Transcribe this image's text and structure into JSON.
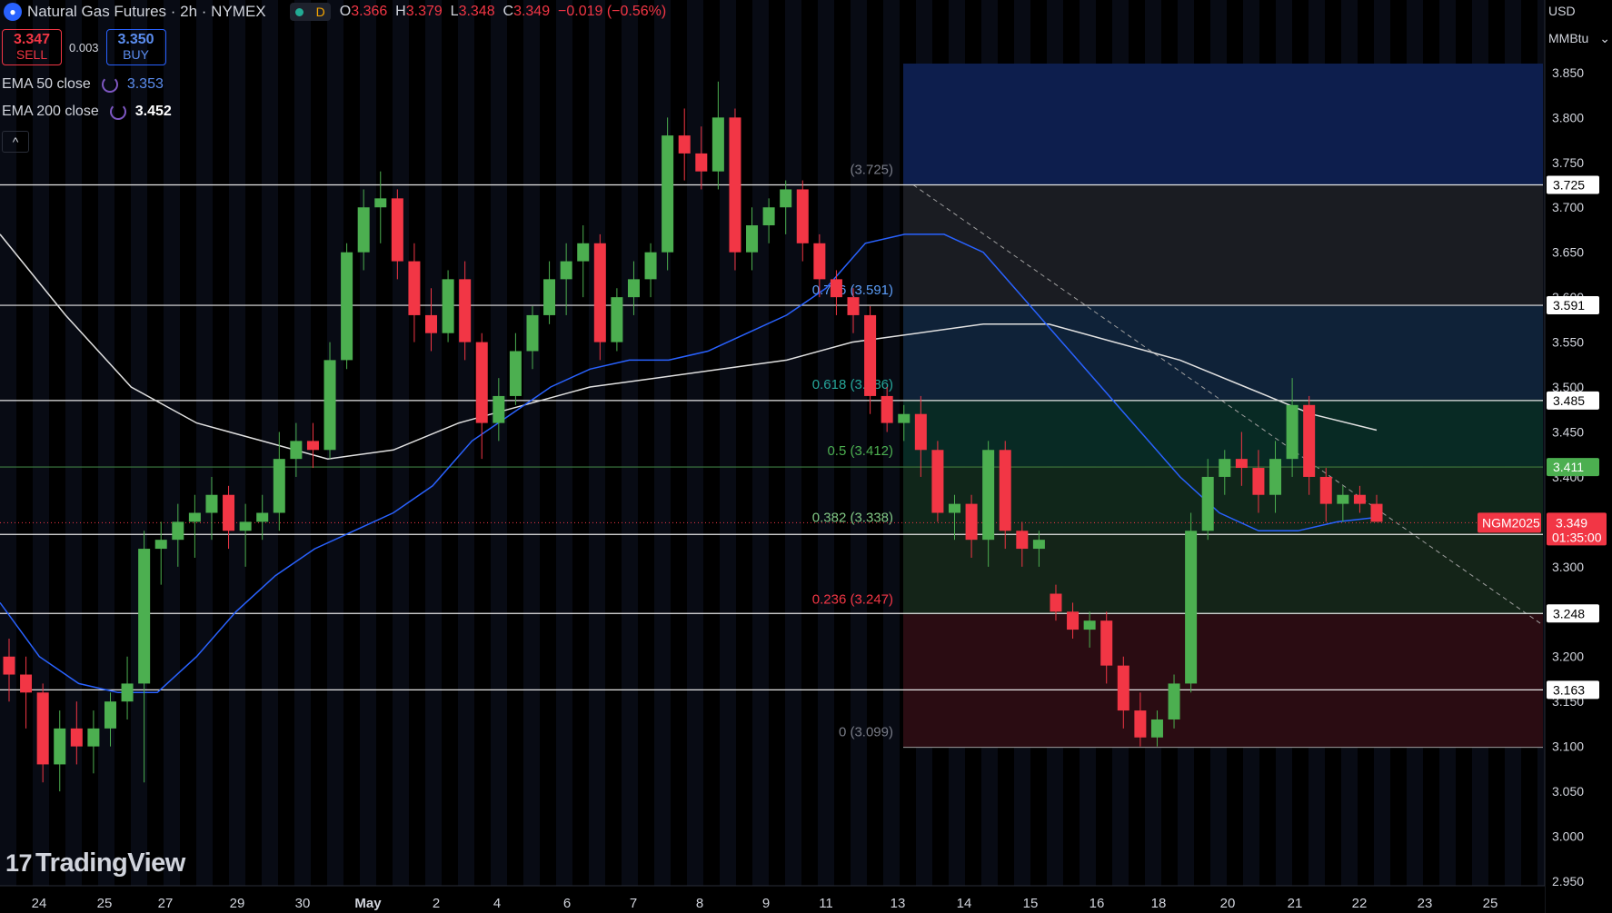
{
  "header": {
    "title": "Natural Gas Futures · 2h · NYMEX",
    "badge": "D",
    "ohlc": {
      "o": "3.366",
      "h": "3.379",
      "l": "3.348",
      "c": "3.349",
      "change": "−0.019 (−0.56%)"
    }
  },
  "trade": {
    "sell_price": "3.347",
    "sell_label": "SELL",
    "spread": "0.003",
    "buy_price": "3.350",
    "buy_label": "BUY"
  },
  "indicators": [
    {
      "label": "EMA 50 close",
      "value": "3.353",
      "color": "#2962ff"
    },
    {
      "label": "EMA 200 close",
      "value": "3.452",
      "color": "#ffffff"
    }
  ],
  "collapse_icon": "chevron-up-icon",
  "units": {
    "currency": "USD",
    "unit": "MMBtu"
  },
  "logo": "TradingView",
  "colors": {
    "up": "#4caf50",
    "down": "#f23645",
    "ema50": "#2962ff",
    "ema200": "#e0e0e0",
    "background": "#000000"
  },
  "chart_data": {
    "type": "candlestick",
    "symbol": "NGM2025",
    "last_price": "3.349",
    "countdown": "01:35:00",
    "y_ticks": [
      "3.850",
      "3.800",
      "3.750",
      "3.700",
      "3.650",
      "3.600",
      "3.550",
      "3.500",
      "3.450",
      "3.400",
      "3.350",
      "3.300",
      "3.250",
      "3.200",
      "3.150",
      "3.100",
      "3.050",
      "3.000",
      "2.950"
    ],
    "ylim": [
      2.95,
      3.86
    ],
    "x_ticks": [
      "24",
      "25",
      "27",
      "29",
      "30",
      "May",
      "2",
      "4",
      "6",
      "7",
      "8",
      "9",
      "11",
      "13",
      "14",
      "15",
      "16",
      "18",
      "20",
      "21",
      "22",
      "23",
      "25"
    ],
    "horizontal_levels": [
      {
        "value": 3.725,
        "label": "3.725",
        "color": "#e0e0e0"
      },
      {
        "value": 3.591,
        "label": "3.591",
        "color": "#e0e0e0"
      },
      {
        "value": 3.485,
        "label": "3.485",
        "color": "#e0e0e0"
      },
      {
        "value": 3.411,
        "label": "3.411",
        "color": "#4caf50"
      },
      {
        "value": 3.336,
        "label": "3.336",
        "color": "#e0e0e0"
      },
      {
        "value": 3.248,
        "label": "3.248",
        "color": "#e0e0e0"
      },
      {
        "value": 3.163,
        "label": "3.163",
        "color": "#e0e0e0"
      }
    ],
    "fibonacci": [
      {
        "ratio": "0.786",
        "label": "0.786 (3.591)",
        "value": 3.591,
        "color": "#5b9cf6"
      },
      {
        "ratio": "0.618",
        "label": "0.618 (3.486)",
        "value": 3.486,
        "color": "#26a69a"
      },
      {
        "ratio": "0.5",
        "label": "0.5 (3.412)",
        "value": 3.412,
        "color": "#4caf50"
      },
      {
        "ratio": "0.382",
        "label": "0.382 (3.338)",
        "value": 3.338,
        "color": "#81c784"
      },
      {
        "ratio": "0.236",
        "label": "0.236 (3.247)",
        "value": 3.247,
        "color": "#f23645"
      },
      {
        "ratio": "0",
        "label": "0 (3.099)",
        "value": 3.099,
        "color": "#787b86"
      },
      {
        "ratio": "1",
        "label": "(3.725)",
        "value": 3.725,
        "color": "#787b86"
      }
    ],
    "ema50_close": [
      3.26,
      3.2,
      3.17,
      3.16,
      3.16,
      3.2,
      3.25,
      3.29,
      3.32,
      3.34,
      3.36,
      3.39,
      3.44,
      3.47,
      3.5,
      3.52,
      3.53,
      3.53,
      3.54,
      3.56,
      3.58,
      3.61,
      3.66,
      3.67,
      3.67,
      3.65,
      3.6,
      3.55,
      3.5,
      3.45,
      3.4,
      3.36,
      3.34,
      3.34,
      3.35,
      3.355
    ],
    "ema200_close": [
      3.67,
      3.58,
      3.5,
      3.46,
      3.44,
      3.42,
      3.43,
      3.46,
      3.48,
      3.5,
      3.51,
      3.52,
      3.53,
      3.55,
      3.56,
      3.57,
      3.57,
      3.55,
      3.53,
      3.5,
      3.47,
      3.452
    ],
    "candles": [
      [
        3.2,
        3.22,
        3.15,
        3.18
      ],
      [
        3.18,
        3.2,
        3.12,
        3.16
      ],
      [
        3.16,
        3.17,
        3.06,
        3.08
      ],
      [
        3.08,
        3.14,
        3.05,
        3.12
      ],
      [
        3.12,
        3.15,
        3.08,
        3.1
      ],
      [
        3.1,
        3.14,
        3.07,
        3.12
      ],
      [
        3.12,
        3.16,
        3.1,
        3.15
      ],
      [
        3.15,
        3.2,
        3.13,
        3.17
      ],
      [
        3.17,
        3.34,
        3.06,
        3.32
      ],
      [
        3.32,
        3.35,
        3.28,
        3.33
      ],
      [
        3.33,
        3.37,
        3.3,
        3.35
      ],
      [
        3.35,
        3.38,
        3.31,
        3.36
      ],
      [
        3.36,
        3.4,
        3.33,
        3.38
      ],
      [
        3.38,
        3.39,
        3.32,
        3.34
      ],
      [
        3.34,
        3.37,
        3.3,
        3.35
      ],
      [
        3.35,
        3.38,
        3.33,
        3.36
      ],
      [
        3.36,
        3.45,
        3.34,
        3.42
      ],
      [
        3.42,
        3.46,
        3.4,
        3.44
      ],
      [
        3.44,
        3.46,
        3.41,
        3.43
      ],
      [
        3.43,
        3.55,
        3.42,
        3.53
      ],
      [
        3.53,
        3.66,
        3.52,
        3.65
      ],
      [
        3.65,
        3.72,
        3.63,
        3.7
      ],
      [
        3.7,
        3.74,
        3.66,
        3.71
      ],
      [
        3.71,
        3.72,
        3.62,
        3.64
      ],
      [
        3.64,
        3.66,
        3.55,
        3.58
      ],
      [
        3.58,
        3.61,
        3.54,
        3.56
      ],
      [
        3.56,
        3.63,
        3.55,
        3.62
      ],
      [
        3.62,
        3.64,
        3.53,
        3.55
      ],
      [
        3.55,
        3.56,
        3.42,
        3.46
      ],
      [
        3.46,
        3.51,
        3.44,
        3.49
      ],
      [
        3.49,
        3.56,
        3.48,
        3.54
      ],
      [
        3.54,
        3.59,
        3.52,
        3.58
      ],
      [
        3.58,
        3.64,
        3.57,
        3.62
      ],
      [
        3.62,
        3.66,
        3.58,
        3.64
      ],
      [
        3.64,
        3.68,
        3.6,
        3.66
      ],
      [
        3.66,
        3.67,
        3.53,
        3.55
      ],
      [
        3.55,
        3.61,
        3.54,
        3.6
      ],
      [
        3.6,
        3.64,
        3.58,
        3.62
      ],
      [
        3.62,
        3.66,
        3.6,
        3.65
      ],
      [
        3.65,
        3.8,
        3.63,
        3.78
      ],
      [
        3.78,
        3.81,
        3.73,
        3.76
      ],
      [
        3.76,
        3.79,
        3.72,
        3.74
      ],
      [
        3.74,
        3.84,
        3.72,
        3.8
      ],
      [
        3.8,
        3.81,
        3.63,
        3.65
      ],
      [
        3.65,
        3.7,
        3.63,
        3.68
      ],
      [
        3.68,
        3.71,
        3.66,
        3.7
      ],
      [
        3.7,
        3.73,
        3.67,
        3.72
      ],
      [
        3.72,
        3.73,
        3.64,
        3.66
      ],
      [
        3.66,
        3.67,
        3.6,
        3.62
      ],
      [
        3.62,
        3.63,
        3.58,
        3.6
      ],
      [
        3.6,
        3.61,
        3.56,
        3.58
      ],
      [
        3.58,
        3.59,
        3.47,
        3.49
      ],
      [
        3.49,
        3.5,
        3.45,
        3.46
      ],
      [
        3.46,
        3.48,
        3.44,
        3.47
      ],
      [
        3.47,
        3.49,
        3.4,
        3.43
      ],
      [
        3.43,
        3.44,
        3.35,
        3.36
      ],
      [
        3.36,
        3.38,
        3.33,
        3.37
      ],
      [
        3.37,
        3.38,
        3.31,
        3.33
      ],
      [
        3.33,
        3.44,
        3.3,
        3.43
      ],
      [
        3.43,
        3.44,
        3.32,
        3.34
      ],
      [
        3.34,
        3.35,
        3.3,
        3.32
      ],
      [
        3.32,
        3.34,
        3.3,
        3.33
      ],
      [
        3.27,
        3.28,
        3.24,
        3.25
      ],
      [
        3.25,
        3.26,
        3.22,
        3.23
      ],
      [
        3.23,
        3.25,
        3.21,
        3.24
      ],
      [
        3.24,
        3.25,
        3.17,
        3.19
      ],
      [
        3.19,
        3.2,
        3.12,
        3.14
      ],
      [
        3.14,
        3.16,
        3.1,
        3.11
      ],
      [
        3.11,
        3.14,
        3.1,
        3.13
      ],
      [
        3.13,
        3.18,
        3.12,
        3.17
      ],
      [
        3.17,
        3.36,
        3.16,
        3.34
      ],
      [
        3.34,
        3.42,
        3.33,
        3.4
      ],
      [
        3.4,
        3.43,
        3.38,
        3.42
      ],
      [
        3.42,
        3.45,
        3.39,
        3.41
      ],
      [
        3.41,
        3.43,
        3.36,
        3.38
      ],
      [
        3.38,
        3.44,
        3.36,
        3.42
      ],
      [
        3.42,
        3.51,
        3.4,
        3.48
      ],
      [
        3.48,
        3.49,
        3.38,
        3.4
      ],
      [
        3.4,
        3.41,
        3.35,
        3.37
      ],
      [
        3.37,
        3.39,
        3.35,
        3.38
      ],
      [
        3.38,
        3.39,
        3.36,
        3.37
      ],
      [
        3.37,
        3.38,
        3.35,
        3.35
      ]
    ]
  }
}
